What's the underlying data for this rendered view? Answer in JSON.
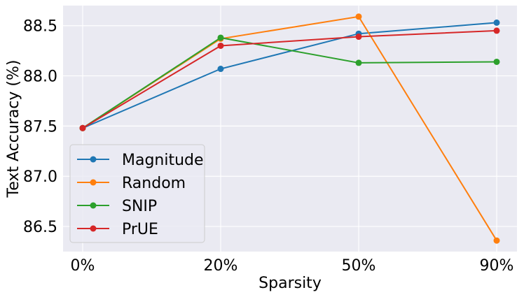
{
  "chart_data": {
    "type": "line",
    "title": "",
    "xlabel": "Sparsity",
    "ylabel": "Text Accuracy (%)",
    "categories": [
      "0%",
      "20%",
      "50%",
      "90%"
    ],
    "ylim": [
      86.25,
      88.7
    ],
    "yticks": [
      86.5,
      87.0,
      87.5,
      88.0,
      88.5
    ],
    "ytick_labels": [
      "86.5",
      "87.0",
      "87.5",
      "88.0",
      "88.5"
    ],
    "grid": true,
    "legend_position": "lower-left",
    "series": [
      {
        "name": "Magnitude",
        "color": "#1f77b4",
        "values": [
          87.48,
          88.07,
          88.42,
          88.53
        ]
      },
      {
        "name": "Random",
        "color": "#ff7f0e",
        "values": [
          87.48,
          88.37,
          88.59,
          86.36
        ]
      },
      {
        "name": "SNIP",
        "color": "#2ca02c",
        "values": [
          87.48,
          88.38,
          88.13,
          88.14
        ]
      },
      {
        "name": "PrUE",
        "color": "#d62728",
        "values": [
          87.48,
          88.3,
          88.39,
          88.45
        ]
      }
    ]
  },
  "colors": {
    "plot_background": "#eaeaf2",
    "grid": "#ffffff"
  }
}
